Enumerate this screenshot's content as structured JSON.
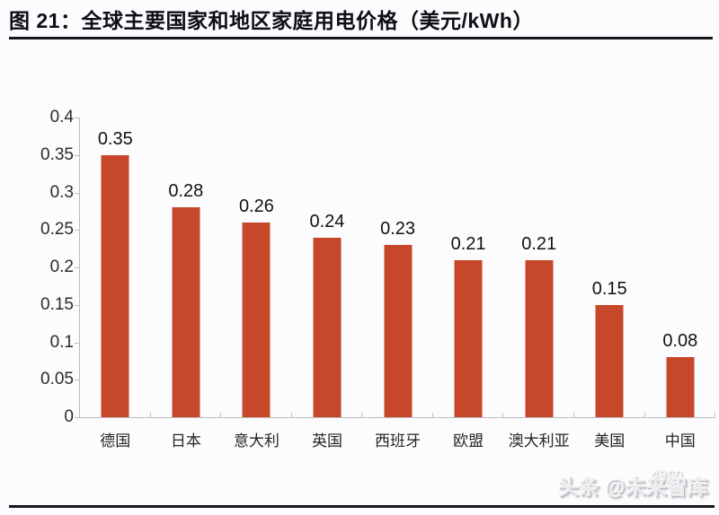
{
  "header": {
    "title": "图 21：全球主要国家和地区家庭用电价格（美元/kWh）"
  },
  "watermark": {
    "text": "头条 @未来智库",
    "ghost": "4960"
  },
  "chart_data": {
    "type": "bar",
    "title": "全球主要国家和地区家庭用电价格（美元/kWh）",
    "categories": [
      "德国",
      "日本",
      "意大利",
      "英国",
      "西班牙",
      "欧盟",
      "澳大利亚",
      "美国",
      "中国"
    ],
    "values": [
      0.35,
      0.28,
      0.26,
      0.24,
      0.23,
      0.21,
      0.21,
      0.15,
      0.08
    ],
    "data_labels": [
      "0.35",
      "0.28",
      "0.26",
      "0.24",
      "0.23",
      "0.21",
      "0.21",
      "0.15",
      "0.08"
    ],
    "xlabel": "",
    "ylabel": "",
    "ylim": [
      0,
      0.4
    ],
    "yticks": [
      {
        "v": 0,
        "label": "0"
      },
      {
        "v": 0.05,
        "label": "0.05"
      },
      {
        "v": 0.1,
        "label": "0.1"
      },
      {
        "v": 0.15,
        "label": "0.15"
      },
      {
        "v": 0.2,
        "label": "0.2"
      },
      {
        "v": 0.25,
        "label": "0.25"
      },
      {
        "v": 0.3,
        "label": "0.3"
      },
      {
        "v": 0.35,
        "label": "0.35"
      },
      {
        "v": 0.4,
        "label": "0.4"
      }
    ],
    "grid": false,
    "legend_position": "none",
    "bar_color": "#C7472A",
    "axis_color": "#bcbcc0"
  }
}
